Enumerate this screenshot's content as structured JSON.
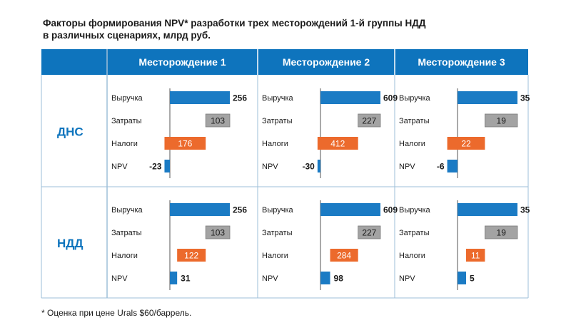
{
  "title": {
    "line1": "Факторы формирования NPV* разработки трех месторождений 1-й группы НДД",
    "line2": "в различных сценариях, млрд руб."
  },
  "footnote": "* Оценка при цене Urals $60/баррель.",
  "colors": {
    "header_bg": "#0e74bd",
    "revenue": "#1b7bc4",
    "costs": "#a3a3a3",
    "taxes": "#ec6a2c",
    "npv": "#1b7bc4",
    "row_label": "#0e74bd",
    "border": "#9dbfd9"
  },
  "chart_data": {
    "type": "bar",
    "subtype": "waterfall",
    "columns": [
      "Месторождение 1",
      "Месторождение 2",
      "Месторождение 3"
    ],
    "rows": [
      "ДНС",
      "НДД"
    ],
    "categories": [
      "Выручка",
      "Затраты",
      "Налоги",
      "NPV"
    ],
    "panels": [
      {
        "row": "ДНС",
        "column": "Месторождение 1",
        "values": [
          256,
          103,
          176,
          -23
        ],
        "labels": [
          "256",
          "103",
          "176",
          "-23"
        ]
      },
      {
        "row": "ДНС",
        "column": "Месторождение 2",
        "values": [
          609,
          227,
          412,
          -30
        ],
        "labels": [
          "609",
          "227",
          "412",
          "-30"
        ]
      },
      {
        "row": "ДНС",
        "column": "Месторождение 3",
        "values": [
          35,
          19,
          22,
          -6
        ],
        "labels": [
          "35",
          "19",
          "22",
          "-6"
        ]
      },
      {
        "row": "НДД",
        "column": "Месторождение 1",
        "values": [
          256,
          103,
          122,
          31
        ],
        "labels": [
          "256",
          "103",
          "122",
          "31"
        ]
      },
      {
        "row": "НДД",
        "column": "Месторождение 2",
        "values": [
          609,
          227,
          284,
          98
        ],
        "labels": [
          "609",
          "227",
          "284",
          "98"
        ]
      },
      {
        "row": "НДД",
        "column": "Месторождение 3",
        "values": [
          35,
          19,
          11,
          5
        ],
        "labels": [
          "35",
          "19",
          "11",
          "5"
        ]
      }
    ]
  }
}
